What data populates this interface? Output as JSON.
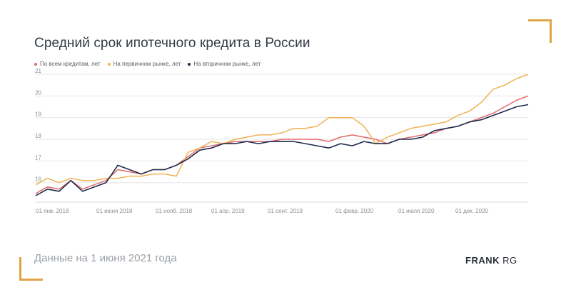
{
  "header": {
    "title": "Средний срок ипотечного кредита в России"
  },
  "footer": {
    "note": "Данные на 1 июня 2021 года",
    "brand_bold": "FRANK",
    "brand_thin": " RG"
  },
  "colors": {
    "all": "#e06a6a",
    "primary": "#f0b252",
    "secondary": "#1f2a4f",
    "grid": "#e6e6e6",
    "tick": "#8a8f96"
  },
  "chart_data": {
    "type": "line",
    "title": "Средний срок ипотечного кредита в России",
    "xlabel": "",
    "ylabel": "",
    "x_ticks": [
      "01 янв. 2018",
      "01 июня 2018",
      "01 нояб. 2018",
      "01 апр. 2019",
      "01 сент. 2019",
      "01 февр. 2020",
      "01 июля 2020",
      "01 дек. 2020"
    ],
    "y_ticks": [
      16,
      17,
      18,
      19,
      20,
      21
    ],
    "y_tick_labels": [
      "16",
      "17",
      "18",
      "19",
      "20",
      "21"
    ],
    "ylim": [
      15.1,
      21
    ],
    "grid": true,
    "legend_position": "top-left",
    "series": [
      {
        "name": "По всем кредитам, лет",
        "color": "#e06a6a",
        "values": [
          15.5,
          15.8,
          15.7,
          16.1,
          15.7,
          15.9,
          16.1,
          16.6,
          16.5,
          16.4,
          16.6,
          16.6,
          16.8,
          17.2,
          17.6,
          17.7,
          17.8,
          17.9,
          17.9,
          17.9,
          17.9,
          18.0,
          18.0,
          18.0,
          18.0,
          17.9,
          18.1,
          18.2,
          18.1,
          18.0,
          17.8,
          18.0,
          18.1,
          18.2,
          18.3,
          18.5,
          18.6,
          18.8,
          19.0,
          19.2,
          19.5,
          19.8,
          20.0
        ]
      },
      {
        "name": "На первичном рынке, лет",
        "color": "#f0b252",
        "values": [
          15.9,
          16.2,
          16.0,
          16.2,
          16.1,
          16.1,
          16.2,
          16.2,
          16.3,
          16.3,
          16.4,
          16.4,
          16.3,
          17.4,
          17.6,
          17.9,
          17.8,
          18.0,
          18.1,
          18.2,
          18.2,
          18.3,
          18.5,
          18.5,
          18.6,
          19.0,
          19.0,
          19.0,
          18.6,
          17.8,
          18.1,
          18.3,
          18.5,
          18.6,
          18.7,
          18.8,
          19.1,
          19.3,
          19.7,
          20.3,
          20.5,
          20.8,
          21.0
        ]
      },
      {
        "name": "На вторичном рынке, лет",
        "color": "#1f2a4f",
        "values": [
          15.4,
          15.7,
          15.6,
          16.1,
          15.6,
          15.8,
          16.0,
          16.8,
          16.6,
          16.4,
          16.6,
          16.6,
          16.8,
          17.1,
          17.5,
          17.6,
          17.8,
          17.8,
          17.9,
          17.8,
          17.9,
          17.9,
          17.9,
          17.8,
          17.7,
          17.6,
          17.8,
          17.7,
          17.9,
          17.8,
          17.8,
          18.0,
          18.0,
          18.1,
          18.4,
          18.5,
          18.6,
          18.8,
          18.9,
          19.1,
          19.3,
          19.5,
          19.6
        ]
      }
    ]
  }
}
